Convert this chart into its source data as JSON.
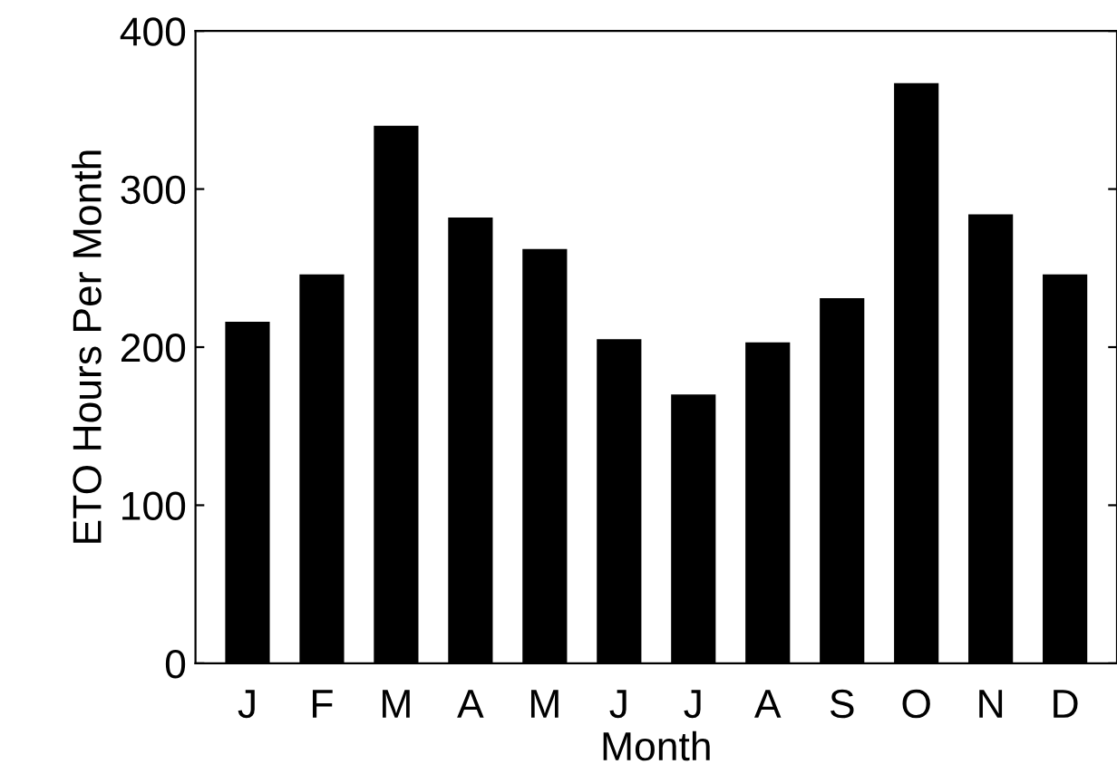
{
  "chart_data": {
    "type": "bar",
    "xlabel": "Month",
    "ylabel": "ETO Hours Per Month",
    "categories": [
      "J",
      "F",
      "M",
      "A",
      "M",
      "J",
      "J",
      "A",
      "S",
      "O",
      "N",
      "D"
    ],
    "values": [
      216,
      246,
      340,
      282,
      262,
      205,
      170,
      203,
      231,
      367,
      284,
      246
    ],
    "color": "#000000",
    "ylim": [
      0,
      400
    ],
    "yticks": [
      0,
      100,
      200,
      300,
      400
    ],
    "grid": false
  }
}
